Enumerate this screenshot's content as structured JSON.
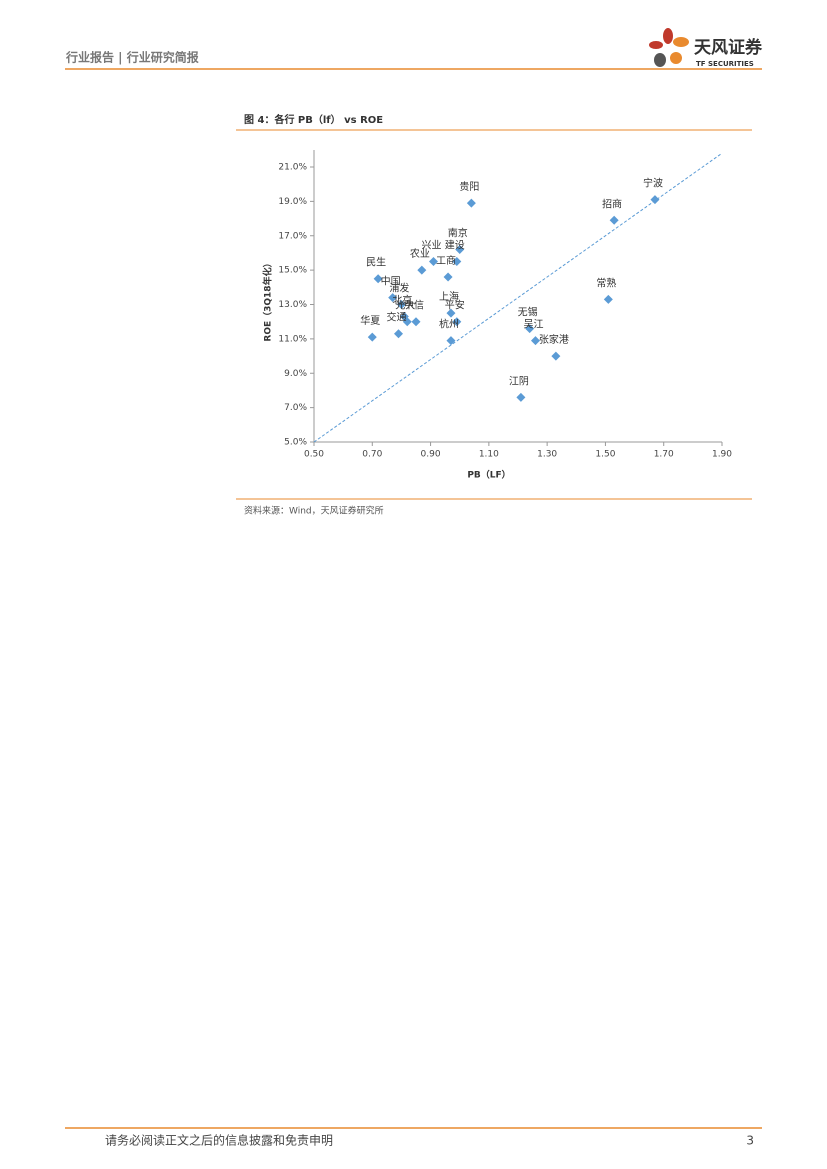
{
  "header": {
    "title": "行业报告 | 行业研究简报",
    "logo": "天风证券",
    "logo_sub": "TF SECURITIES"
  },
  "chart_data": {
    "type": "scatter",
    "title": "图 4：各行 PB（lf） vs ROE",
    "x_label": "PB（LF）",
    "y_label": "ROE（3Q18年化）",
    "color": "#5b9bd5",
    "xlim": [
      0.5,
      1.9
    ],
    "xticks": [
      {
        "value": 0.5,
        "label": "0.50"
      },
      {
        "value": 0.7,
        "label": "0.70"
      },
      {
        "value": 0.9,
        "label": "0.90"
      },
      {
        "value": 1.1,
        "label": "1.10"
      },
      {
        "value": 1.3,
        "label": "1.30"
      },
      {
        "value": 1.5,
        "label": "1.50"
      },
      {
        "value": 1.7,
        "label": "1.70"
      },
      {
        "value": 1.9,
        "label": "1.90"
      }
    ],
    "ylim": [
      5,
      21
    ],
    "yticks": [
      {
        "value": 5,
        "label": "5.0%"
      },
      {
        "value": 7,
        "label": "7.0%"
      },
      {
        "value": 9,
        "label": "9.0%"
      },
      {
        "value": 11,
        "label": "11.0%"
      },
      {
        "value": 13,
        "label": "13.0%"
      },
      {
        "value": 15,
        "label": "15.0%"
      },
      {
        "value": 17,
        "label": "17.0%"
      },
      {
        "value": 19,
        "label": "19.0%"
      },
      {
        "value": 21,
        "label": "21.0%"
      }
    ],
    "points": [
      {
        "label": "宁波",
        "x": 1.67,
        "y": 19.1
      },
      {
        "label": "招商",
        "x": 1.53,
        "y": 17.9
      },
      {
        "label": "贵阳",
        "x": 1.04,
        "y": 18.9
      },
      {
        "label": "南京",
        "x": 1.0,
        "y": 16.2
      },
      {
        "label": "建设",
        "x": 0.99,
        "y": 15.5
      },
      {
        "label": "兴业",
        "x": 0.91,
        "y": 15.5
      },
      {
        "label": "农业",
        "x": 0.87,
        "y": 15.0
      },
      {
        "label": "工商",
        "x": 0.96,
        "y": 14.6
      },
      {
        "label": "民生",
        "x": 0.72,
        "y": 14.5
      },
      {
        "label": "中国",
        "x": 0.77,
        "y": 13.4
      },
      {
        "label": "浦发",
        "x": 0.8,
        "y": 13.0
      },
      {
        "label": "北京",
        "x": 0.81,
        "y": 12.3
      },
      {
        "label": "光大",
        "x": 0.82,
        "y": 12.0
      },
      {
        "label": "中信",
        "x": 0.85,
        "y": 12.0
      },
      {
        "label": "交通",
        "x": 0.79,
        "y": 11.3
      },
      {
        "label": "华夏",
        "x": 0.7,
        "y": 11.1
      },
      {
        "label": "上海",
        "x": 0.97,
        "y": 12.5
      },
      {
        "label": "平安",
        "x": 0.99,
        "y": 12.0
      },
      {
        "label": "杭州",
        "x": 0.97,
        "y": 10.9
      },
      {
        "label": "无锡",
        "x": 1.24,
        "y": 11.6
      },
      {
        "label": "吴江",
        "x": 1.26,
        "y": 10.9
      },
      {
        "label": "张家港",
        "x": 1.33,
        "y": 10.0
      },
      {
        "label": "常熟",
        "x": 1.51,
        "y": 13.3
      },
      {
        "label": "江阴",
        "x": 1.21,
        "y": 7.6
      }
    ],
    "trendline": {
      "x": [
        0.5,
        1.9
      ],
      "y": [
        5,
        21.8
      ]
    },
    "source": "资料来源：Wind，天风证券研究所"
  },
  "footer": {
    "disclaimer": "请务必阅读正文之后的信息披露和免责申明",
    "page": "3"
  }
}
